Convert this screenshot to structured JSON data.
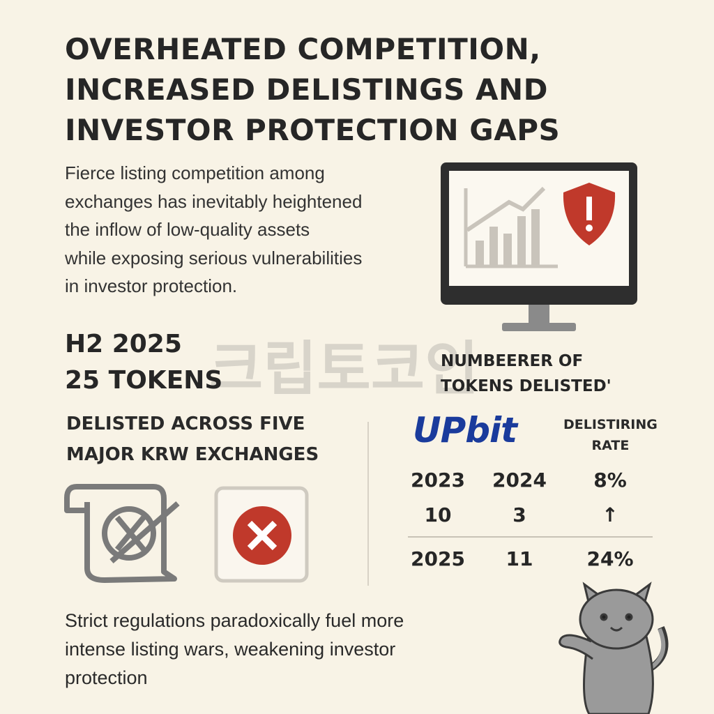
{
  "header": {
    "title": [
      "OVERHEATED COMPETITION,",
      "INCREASED DELISTINGS AND",
      "INVESTOR PROTECTION GAPS"
    ]
  },
  "intro": [
    "Fierce listing competition among",
    "exchanges has inevitably heightened",
    "the inflow of low-quality assets",
    "while exposing serious vulnerabilities",
    "in investor protection."
  ],
  "watermark": "크립토코인",
  "stat": {
    "period": "H2 2025",
    "count": "25 TOKENS",
    "caption": [
      "DELISTED ACROSS FIVE",
      "MAJOR KRW EXCHANGES"
    ]
  },
  "panel": {
    "heading": [
      "NUMBEERER OF",
      "TOKENS DELISTED'"
    ],
    "brand": "UPbit",
    "rate_heading": [
      "DELISTIRING",
      "RATE"
    ],
    "table": {
      "rows": [
        [
          "2023",
          "2024",
          "8%"
        ],
        [
          "10",
          "3",
          "↑"
        ],
        [
          "2025",
          "11",
          "24%"
        ]
      ]
    }
  },
  "footer": [
    "Strict regulations paradoxically fuel more",
    "intense listing wars, weakening investor",
    "protection"
  ]
}
